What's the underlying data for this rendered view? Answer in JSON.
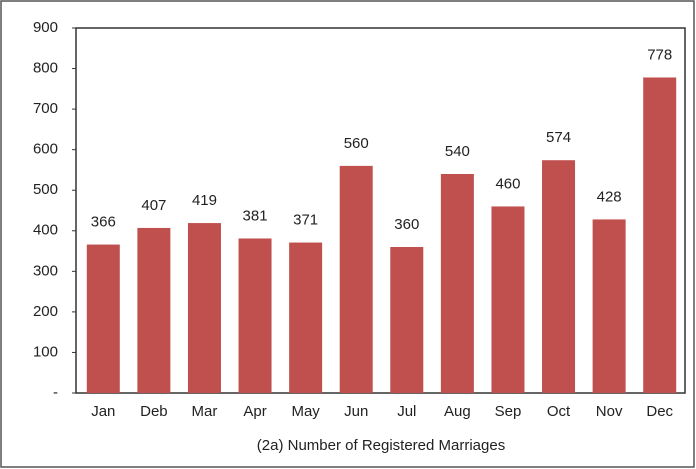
{
  "chart_data": {
    "type": "bar",
    "x_label": "(2a) Number of Registered Marriages",
    "categories": [
      "Jan",
      "Deb",
      "Mar",
      "Apr",
      "May",
      "Jun",
      "Jul",
      "Aug",
      "Sep",
      "Oct",
      "Nov",
      "Dec"
    ],
    "values": [
      366,
      407,
      419,
      381,
      371,
      560,
      360,
      540,
      460,
      574,
      428,
      778
    ],
    "color": "#c0504d",
    "ylim": [
      0,
      900
    ],
    "yticks": [
      {
        "value": 0,
        "label": "-"
      },
      100,
      200,
      300,
      400,
      500,
      600,
      700,
      800,
      900
    ],
    "grid": false
  }
}
